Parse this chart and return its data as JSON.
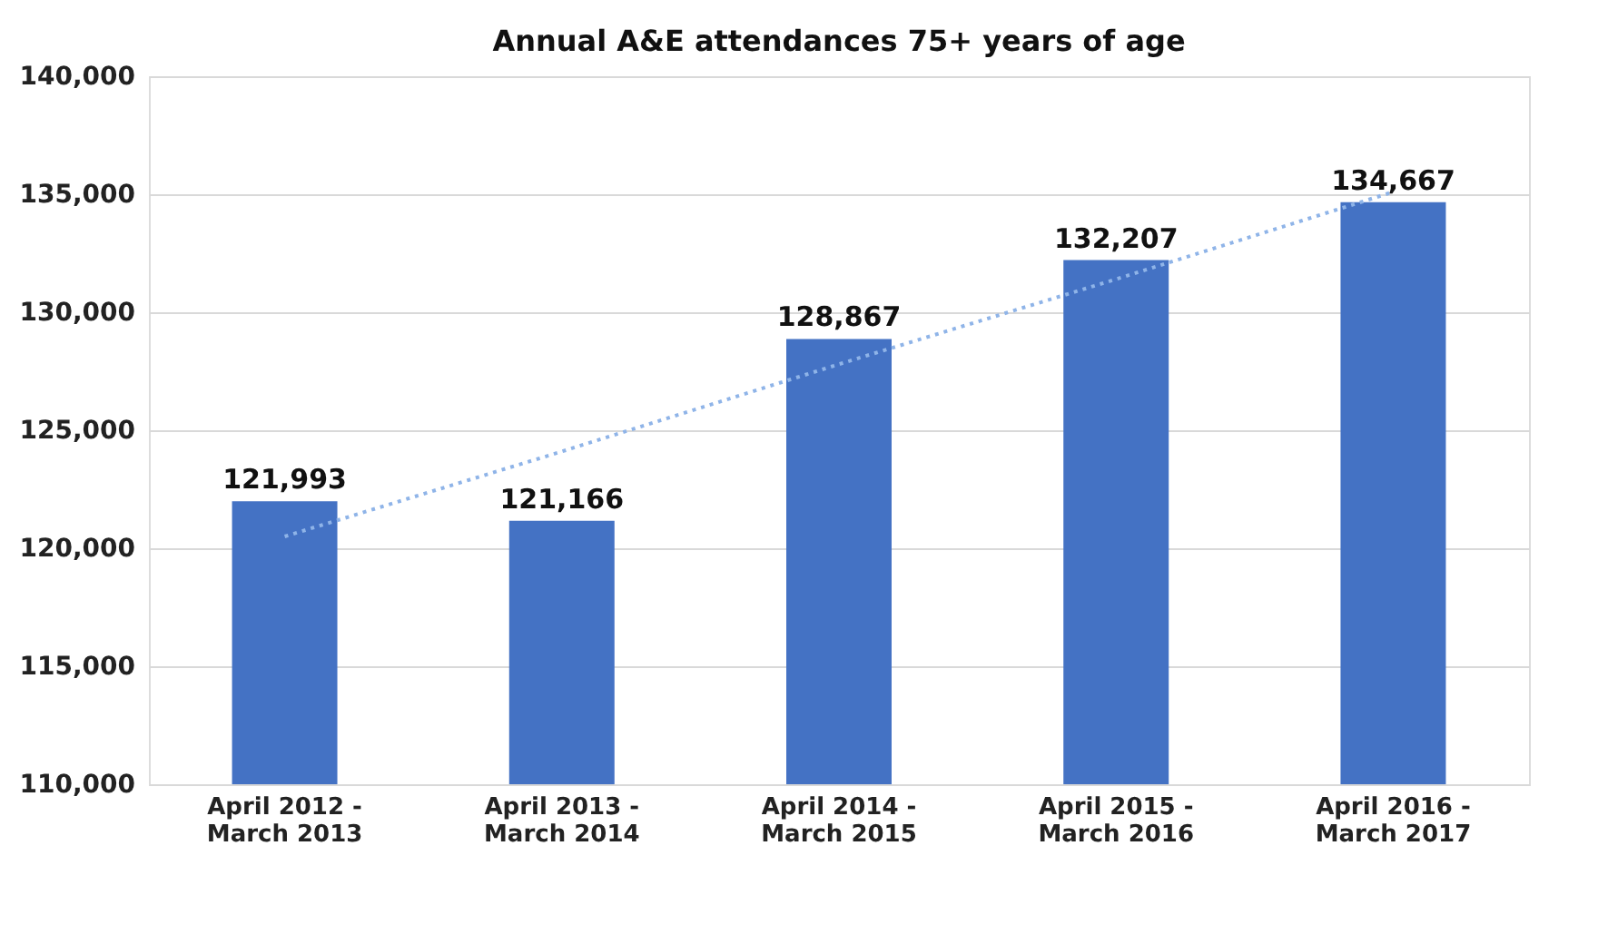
{
  "chart_data": {
    "type": "bar",
    "title": "Annual  A&E attendances  75+ years  of age",
    "categories": [
      "April 2012 - March 2013",
      "April 2013 - March 2014",
      "April 2014 - March 2015",
      "April 2015 - March 2016",
      "April 2016 - March 2017"
    ],
    "series": [
      {
        "color": "#4472c4",
        "values": [
          121993,
          121166,
          128867,
          132207,
          134667
        ],
        "value_labels": [
          "121,993",
          "121,166",
          "128,867",
          "132,207",
          "134,667"
        ]
      },
      {
        "type": "line",
        "color": "#8fb4e8",
        "line_style": "dotted",
        "marker": "none",
        "values": [
          120500,
          124100,
          127800,
          131400,
          135100
        ]
      }
    ],
    "ylim": [
      110000,
      140000
    ],
    "yticks": [
      {
        "value": 110000,
        "label": "110,000"
      },
      {
        "value": 115000,
        "label": "115,000"
      },
      {
        "value": 120000,
        "label": "120,000"
      },
      {
        "value": 125000,
        "label": "125,000"
      },
      {
        "value": 130000,
        "label": "130,000"
      },
      {
        "value": 135000,
        "label": "135,000"
      },
      {
        "value": 140000,
        "label": "140,000"
      }
    ],
    "grid": "y"
  }
}
